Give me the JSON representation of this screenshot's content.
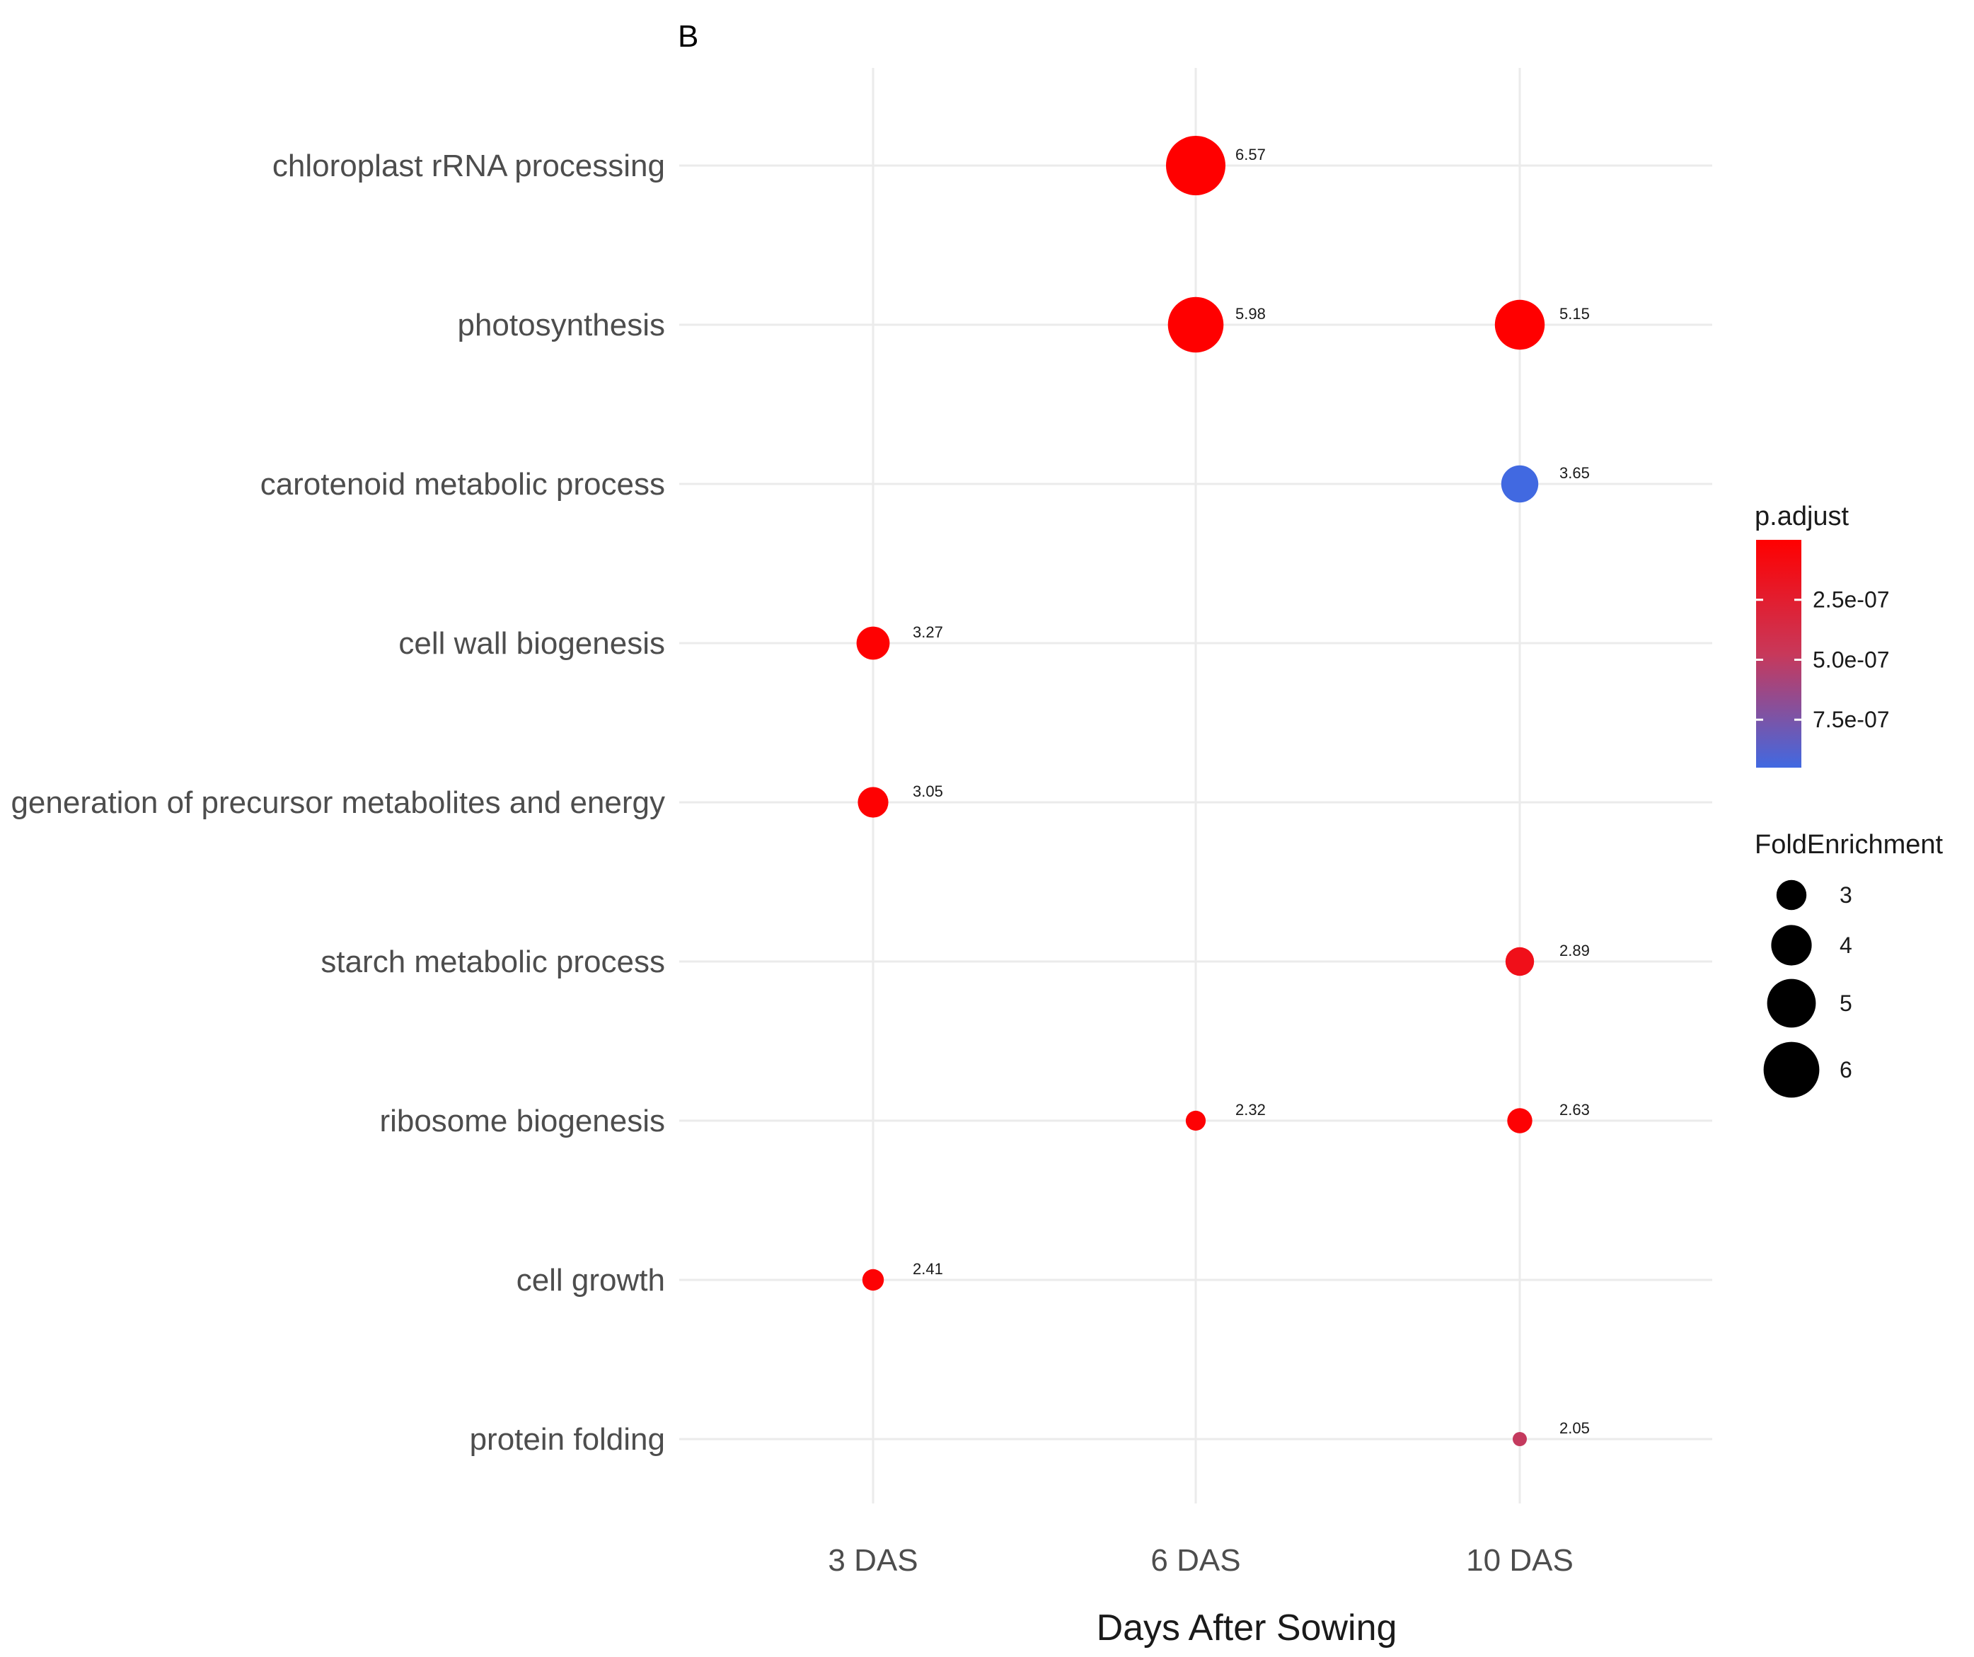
{
  "chart_data": {
    "type": "scatter",
    "panel_label": "B",
    "xlabel": "Days After Sowing",
    "categories_x": [
      "3 DAS",
      "6 DAS",
      "10 DAS"
    ],
    "categories_y": [
      "chloroplast rRNA processing",
      "photosynthesis",
      "carotenoid metabolic process",
      "cell wall biogenesis",
      "generation of precursor metabolites and energy",
      "starch metabolic process",
      "ribosome biogenesis",
      "cell growth",
      "protein folding"
    ],
    "points": [
      {
        "term": "chloroplast rRNA processing",
        "x": "6 DAS",
        "fold_enrichment": 6.57,
        "label": "6.57",
        "p_adjust": 1e-09
      },
      {
        "term": "photosynthesis",
        "x": "6 DAS",
        "fold_enrichment": 5.98,
        "label": "5.98",
        "p_adjust": 1e-09
      },
      {
        "term": "photosynthesis",
        "x": "10 DAS",
        "fold_enrichment": 5.15,
        "label": "5.15",
        "p_adjust": 1e-09
      },
      {
        "term": "carotenoid metabolic process",
        "x": "10 DAS",
        "fold_enrichment": 3.65,
        "label": "3.65",
        "p_adjust": 9.5e-07
      },
      {
        "term": "cell wall biogenesis",
        "x": "3 DAS",
        "fold_enrichment": 3.27,
        "label": "3.27",
        "p_adjust": 1e-08
      },
      {
        "term": "generation of precursor metabolites and energy",
        "x": "3 DAS",
        "fold_enrichment": 3.05,
        "label": "3.05",
        "p_adjust": 1e-08
      },
      {
        "term": "starch metabolic process",
        "x": "10 DAS",
        "fold_enrichment": 2.89,
        "label": "2.89",
        "p_adjust": 1.3e-07
      },
      {
        "term": "ribosome biogenesis",
        "x": "6 DAS",
        "fold_enrichment": 2.32,
        "label": "2.32",
        "p_adjust": 2e-08
      },
      {
        "term": "ribosome biogenesis",
        "x": "10 DAS",
        "fold_enrichment": 2.63,
        "label": "2.63",
        "p_adjust": 2e-08
      },
      {
        "term": "cell growth",
        "x": "3 DAS",
        "fold_enrichment": 2.41,
        "label": "2.41",
        "p_adjust": 2e-08
      },
      {
        "term": "protein folding",
        "x": "10 DAS",
        "fold_enrichment": 2.05,
        "label": "2.05",
        "p_adjust": 4.9e-07
      }
    ],
    "color_legend": {
      "title": "p.adjust",
      "range": [
        0,
        9.5e-07
      ],
      "low_color": "#ff0000",
      "high_color": "#4169e1",
      "ticks": [
        {
          "value": 2.5e-07,
          "label": "2.5e-07"
        },
        {
          "value": 5e-07,
          "label": "5.0e-07"
        },
        {
          "value": 7.5e-07,
          "label": "7.5e-07"
        }
      ]
    },
    "size_legend": {
      "title": "FoldEnrichment",
      "range": [
        2.05,
        6.57
      ],
      "values": [
        3,
        4,
        5,
        6
      ],
      "labels": [
        "3",
        "4",
        "5",
        "6"
      ]
    },
    "grid": true
  }
}
